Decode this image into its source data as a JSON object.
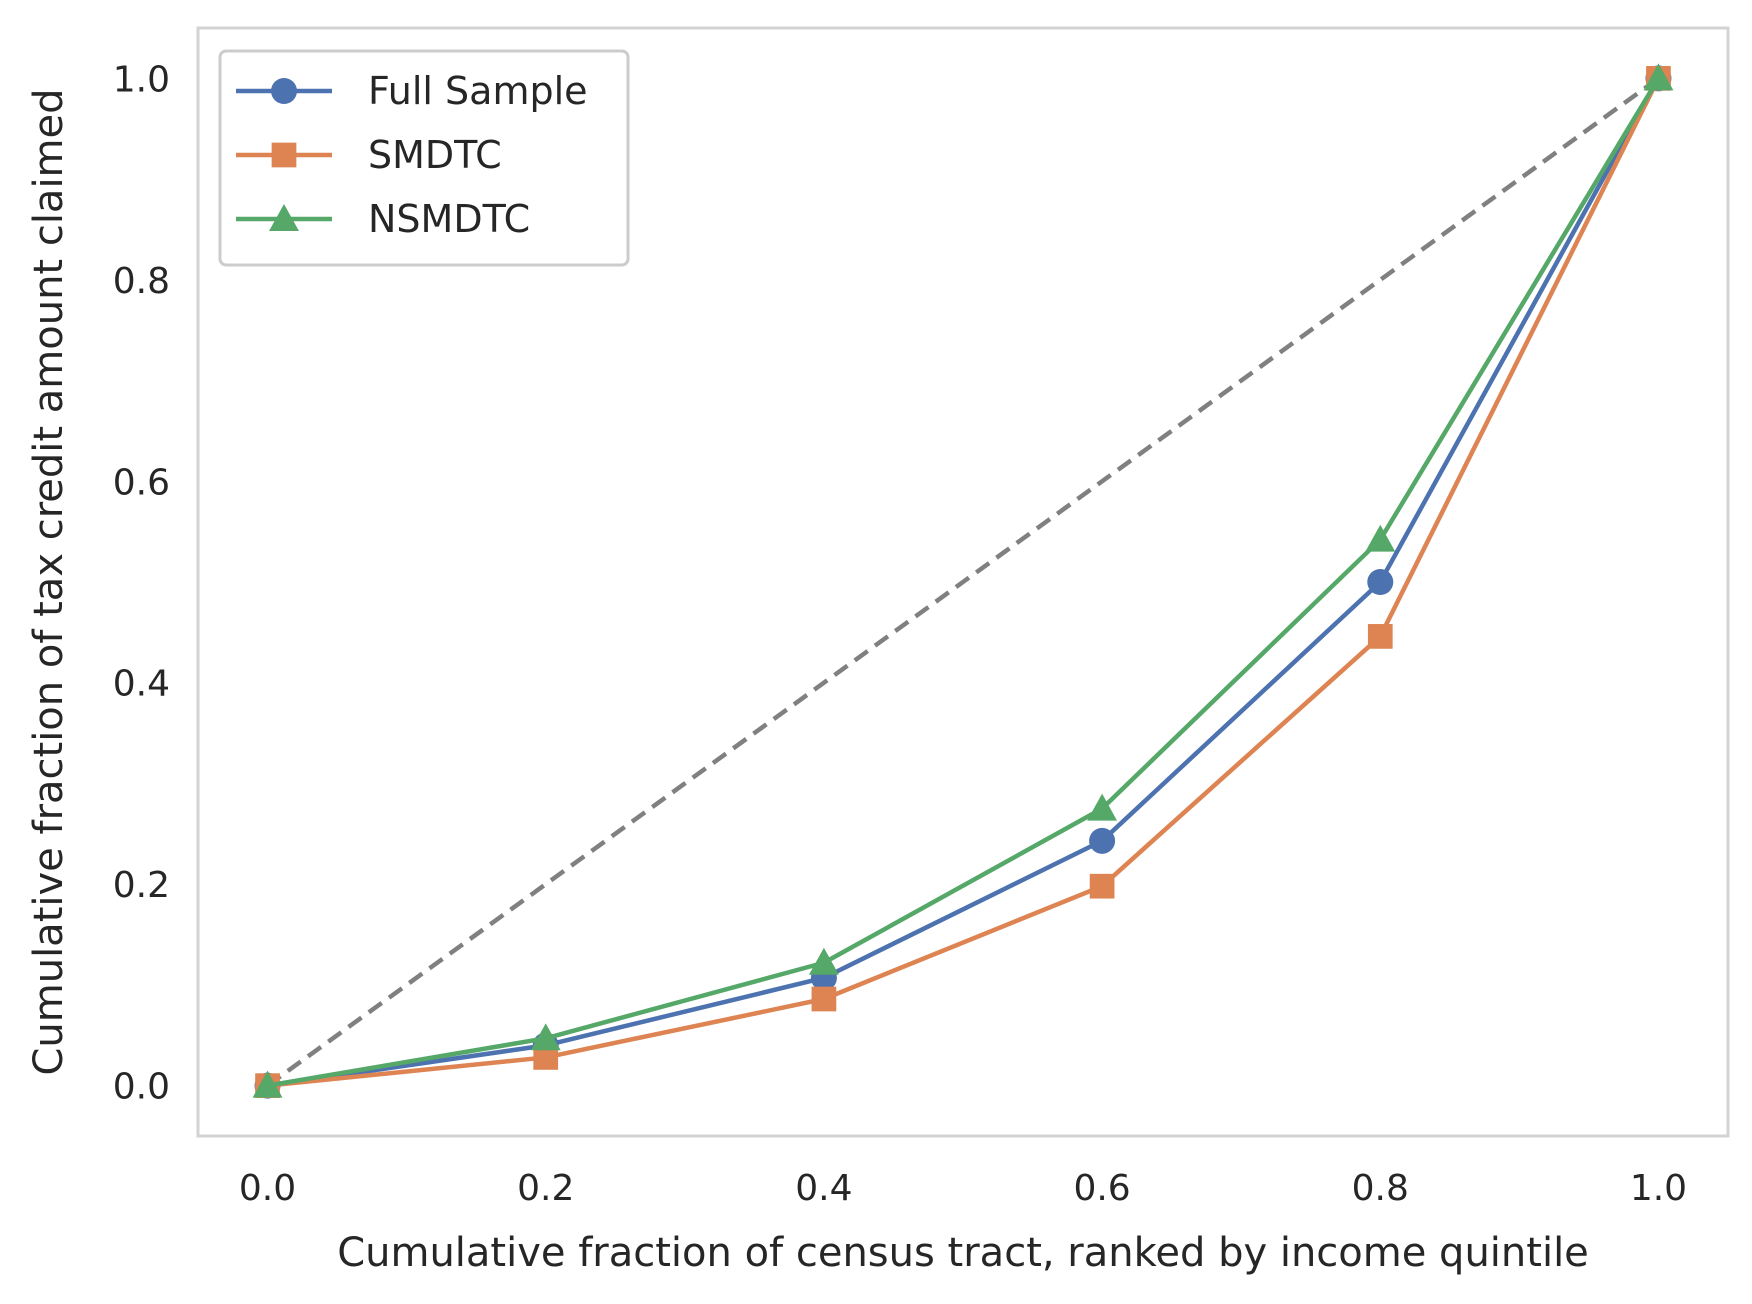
{
  "chart_data": {
    "type": "line",
    "title": "",
    "xlabel": "Cumulative fraction of census tract, ranked by income quintile",
    "ylabel": "Cumulative fraction of tax credit amount claimed",
    "xlim": [
      -0.05,
      1.05
    ],
    "ylim": [
      -0.05,
      1.05
    ],
    "grid": false,
    "legend_position": "top-left",
    "x_ticks": [
      0.0,
      0.2,
      0.4,
      0.6,
      0.8,
      1.0
    ],
    "x_tick_labels": [
      "0.0",
      "0.2",
      "0.4",
      "0.6",
      "0.8",
      "1.0"
    ],
    "y_ticks": [
      0.0,
      0.2,
      0.4,
      0.6,
      0.8,
      1.0
    ],
    "y_tick_labels": [
      "0.0",
      "0.2",
      "0.4",
      "0.6",
      "0.8",
      "1.0"
    ],
    "x": [
      0.0,
      0.2,
      0.4,
      0.6,
      0.8,
      1.0
    ],
    "series": [
      {
        "name": "Full Sample",
        "values": [
          0.0,
          0.04,
          0.107,
          0.243,
          0.5,
          1.0
        ],
        "color": "#4c72b0",
        "marker": "circle"
      },
      {
        "name": "SMDTC",
        "values": [
          0.0,
          0.028,
          0.086,
          0.198,
          0.446,
          1.0
        ],
        "color": "#dd8452",
        "marker": "square"
      },
      {
        "name": "NSMDTC",
        "values": [
          0.0,
          0.047,
          0.122,
          0.275,
          0.542,
          1.0
        ],
        "color": "#55a868",
        "marker": "triangle"
      }
    ],
    "reference_line": {
      "x": [
        0.0,
        1.0
      ],
      "y": [
        0.0,
        1.0
      ],
      "color": "#808080",
      "style": "dashed"
    },
    "frame_color": "#d3d3d3"
  }
}
